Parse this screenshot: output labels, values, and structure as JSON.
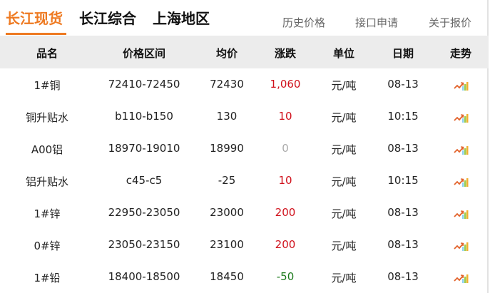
{
  "nav": {
    "tabs": [
      "长江现货",
      "长江综合",
      "上海地区"
    ],
    "links": [
      "历史价格",
      "接口申请",
      "关于报价"
    ]
  },
  "colors": {
    "accent": "#ee7a22",
    "up": "#d0101b",
    "down": "#1c7a1c",
    "flat": "#aaaaaa"
  },
  "table": {
    "headers": [
      "品名",
      "价格区间",
      "均价",
      "涨跌",
      "单位",
      "日期",
      "走势"
    ],
    "rows": [
      {
        "name": "1#铜",
        "range": "72410-72450",
        "avg": "72430",
        "change": "1,060",
        "dir": "up",
        "unit": "元/吨",
        "date": "08-13",
        "trend": "trend-up-icon"
      },
      {
        "name": "铜升贴水",
        "range": "b110-b150",
        "avg": "130",
        "change": "10",
        "dir": "up",
        "unit": "元/吨",
        "date": "10:15",
        "trend": "trend-up-icon"
      },
      {
        "name": "A00铝",
        "range": "18970-19010",
        "avg": "18990",
        "change": "0",
        "dir": "flat",
        "unit": "元/吨",
        "date": "08-13",
        "trend": "trend-up-icon"
      },
      {
        "name": "铝升贴水",
        "range": "c45-c5",
        "avg": "-25",
        "change": "10",
        "dir": "up",
        "unit": "元/吨",
        "date": "10:15",
        "trend": "trend-up-icon"
      },
      {
        "name": "1#锌",
        "range": "22950-23050",
        "avg": "23000",
        "change": "200",
        "dir": "up",
        "unit": "元/吨",
        "date": "08-13",
        "trend": "trend-up-icon"
      },
      {
        "name": "0#锌",
        "range": "23050-23150",
        "avg": "23100",
        "change": "200",
        "dir": "up",
        "unit": "元/吨",
        "date": "08-13",
        "trend": "trend-up-icon"
      },
      {
        "name": "1#铅",
        "range": "18400-18500",
        "avg": "18450",
        "change": "-50",
        "dir": "down",
        "unit": "元/吨",
        "date": "08-13",
        "trend": "trend-up-icon"
      }
    ]
  }
}
